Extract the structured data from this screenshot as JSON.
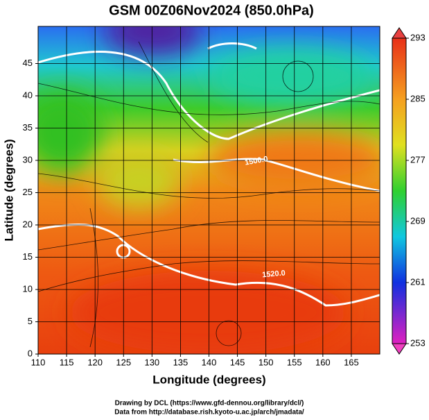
{
  "title": "GSM 00Z06Nov2024 (850.0hPa)",
  "map": {
    "x_label": "Longitude (degrees)",
    "y_label": "Latitude  (degrees)",
    "xlim": [
      110,
      170
    ],
    "ylim": [
      0,
      50
    ],
    "xticks": [
      110,
      115,
      120,
      125,
      130,
      135,
      140,
      145,
      150,
      155,
      160,
      165
    ],
    "yticks": [
      0,
      5,
      10,
      15,
      20,
      25,
      30,
      35,
      40,
      45
    ],
    "grid": true,
    "contour_labels": [
      "1500.0",
      "1520.0"
    ]
  },
  "colorbar": {
    "lim": [
      253,
      293
    ],
    "ticks": [
      253,
      261,
      269,
      277,
      285,
      293
    ]
  },
  "credits": [
    "Drawing by DCL (https://www.gfd-dennou.org/library/dcl/)",
    "Data from http://database.rish.kyoto-u.ac.jp/arch/jmadata/"
  ]
}
